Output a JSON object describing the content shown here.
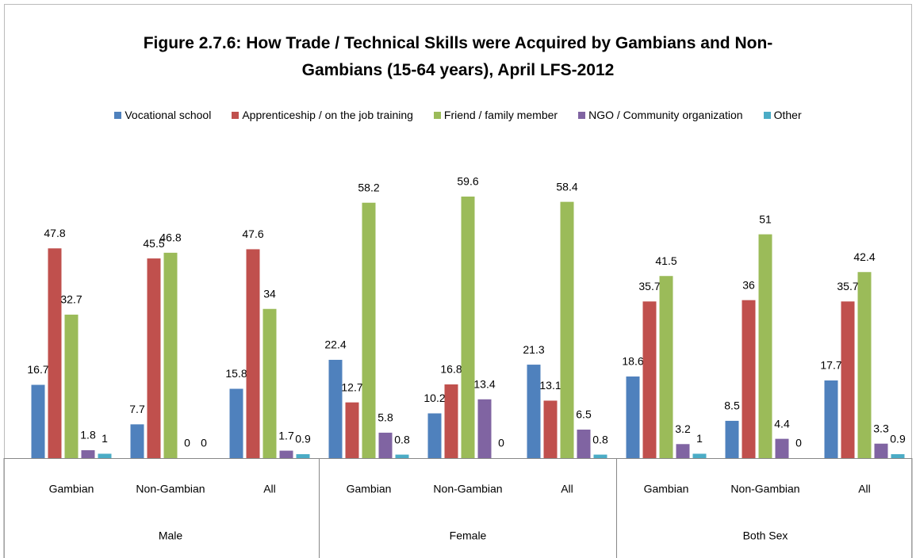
{
  "chart_data": {
    "type": "bar",
    "title": "Figure 2.7.6: How Trade / Technical Skills were Acquired by Gambians and Non-Gambians (15-64 years), April LFS-2012",
    "categories": [
      "Gambian",
      "Non-Gambian",
      "All",
      "Gambian",
      "Non-Gambian",
      "All",
      "Gambian",
      "Non-Gambian",
      "All"
    ],
    "groups": [
      "Male",
      "Female",
      "Both Sex"
    ],
    "series": [
      {
        "name": "Vocational school",
        "color": "#4f81bd",
        "values": [
          16.7,
          7.7,
          15.8,
          22.4,
          10.2,
          21.3,
          18.6,
          8.5,
          17.7
        ]
      },
      {
        "name": "Apprenticeship / on the job training",
        "color": "#c0504d",
        "values": [
          47.8,
          45.5,
          47.6,
          12.7,
          16.8,
          13.1,
          35.7,
          36,
          35.7
        ]
      },
      {
        "name": "Friend / family member",
        "color": "#9bbb59",
        "values": [
          32.7,
          46.8,
          34,
          58.2,
          59.6,
          58.4,
          41.5,
          51,
          42.4
        ]
      },
      {
        "name": "NGO / Community organization",
        "color": "#8064a2",
        "values": [
          1.8,
          0,
          1.7,
          5.8,
          13.4,
          6.5,
          3.2,
          4.4,
          3.3
        ]
      },
      {
        "name": "Other",
        "color": "#4bacc6",
        "values": [
          1,
          0,
          0.9,
          0.8,
          0,
          0.8,
          1,
          0,
          0.9
        ]
      }
    ],
    "legend": "top"
  }
}
